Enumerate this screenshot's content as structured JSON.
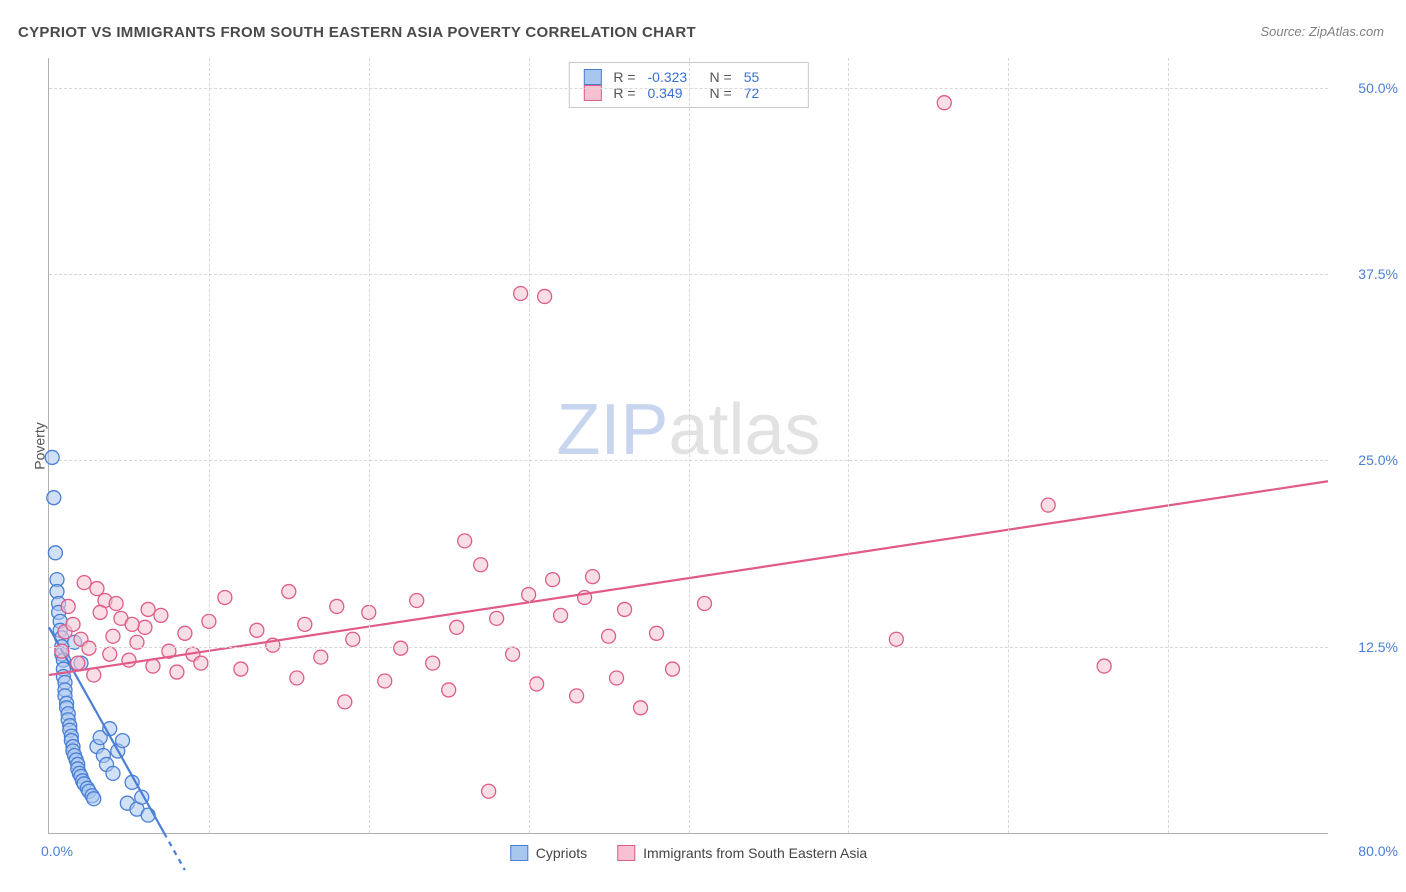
{
  "title": "CYPRIOT VS IMMIGRANTS FROM SOUTH EASTERN ASIA POVERTY CORRELATION CHART",
  "source": "Source: ZipAtlas.com",
  "ylabel": "Poverty",
  "watermark": {
    "part1": "ZIP",
    "part2": "atlas"
  },
  "chart": {
    "type": "scatter",
    "background_color": "#ffffff",
    "grid_color": "#d8d8d8",
    "axis_color": "#b0b0b0",
    "tick_color": "#4a7fd6",
    "xlim": [
      0,
      80
    ],
    "ylim": [
      0,
      52
    ],
    "x_ticks": [
      0,
      80
    ],
    "x_tick_labels": [
      "0.0%",
      "80.0%"
    ],
    "x_grid": [
      10,
      20,
      30,
      40,
      50,
      60,
      70
    ],
    "y_ticks": [
      12.5,
      25.0,
      37.5,
      50.0
    ],
    "y_tick_labels": [
      "12.5%",
      "25.0%",
      "37.5%",
      "50.0%"
    ],
    "marker_radius": 7,
    "marker_opacity": 0.55,
    "line_width": 2.2
  },
  "legend_top": {
    "r_label": "R =",
    "n_label": "N =",
    "rows": [
      {
        "r": "-0.323",
        "n": "55",
        "fill": "#a9c6ef",
        "stroke": "#4a7fd6"
      },
      {
        "r": "0.349",
        "n": "72",
        "fill": "#f6c2d2",
        "stroke": "#e05b88"
      }
    ]
  },
  "legend_bottom": {
    "items": [
      {
        "label": "Cypriots",
        "fill": "#a9c6ef",
        "stroke": "#4a7fd6"
      },
      {
        "label": "Immigrants from South Eastern Asia",
        "fill": "#f6c2d2",
        "stroke": "#e05b88"
      }
    ]
  },
  "series": [
    {
      "name": "Cypriots",
      "color_fill": "#a9c6ef",
      "color_stroke": "#4a7fd6",
      "trend": {
        "x1": 0,
        "y1": 13.8,
        "x2": 7.2,
        "y2": 0,
        "dash_extend": true
      },
      "points": [
        [
          0.2,
          25.2
        ],
        [
          0.3,
          22.5
        ],
        [
          0.4,
          18.8
        ],
        [
          0.5,
          17.0
        ],
        [
          0.5,
          16.2
        ],
        [
          0.6,
          15.4
        ],
        [
          0.6,
          14.8
        ],
        [
          0.7,
          14.2
        ],
        [
          0.7,
          13.6
        ],
        [
          0.8,
          13.1
        ],
        [
          0.8,
          12.5
        ],
        [
          0.8,
          12.0
        ],
        [
          0.9,
          11.6
        ],
        [
          0.9,
          11.0
        ],
        [
          0.9,
          10.5
        ],
        [
          1.0,
          10.1
        ],
        [
          1.0,
          9.6
        ],
        [
          1.0,
          9.2
        ],
        [
          1.1,
          8.7
        ],
        [
          1.1,
          8.4
        ],
        [
          1.2,
          8.0
        ],
        [
          1.2,
          7.6
        ],
        [
          1.3,
          7.2
        ],
        [
          1.3,
          6.9
        ],
        [
          1.4,
          6.5
        ],
        [
          1.4,
          6.2
        ],
        [
          1.5,
          5.8
        ],
        [
          1.5,
          5.5
        ],
        [
          1.6,
          5.2
        ],
        [
          1.7,
          4.9
        ],
        [
          1.8,
          4.6
        ],
        [
          1.8,
          4.3
        ],
        [
          1.9,
          4.0
        ],
        [
          2.0,
          3.8
        ],
        [
          2.1,
          3.5
        ],
        [
          2.2,
          3.3
        ],
        [
          2.4,
          3.0
        ],
        [
          2.5,
          2.8
        ],
        [
          2.7,
          2.5
        ],
        [
          2.8,
          2.3
        ],
        [
          3.0,
          5.8
        ],
        [
          3.2,
          6.4
        ],
        [
          3.4,
          5.2
        ],
        [
          3.6,
          4.6
        ],
        [
          3.8,
          7.0
        ],
        [
          4.0,
          4.0
        ],
        [
          4.3,
          5.5
        ],
        [
          4.6,
          6.2
        ],
        [
          4.9,
          2.0
        ],
        [
          5.2,
          3.4
        ],
        [
          5.5,
          1.6
        ],
        [
          5.8,
          2.4
        ],
        [
          6.2,
          1.2
        ],
        [
          1.6,
          12.8
        ],
        [
          2.0,
          11.4
        ]
      ]
    },
    {
      "name": "Immigrants from South Eastern Asia",
      "color_fill": "#f6c2d2",
      "color_stroke": "#e05b88",
      "trend": {
        "x1": 0,
        "y1": 10.6,
        "x2": 80,
        "y2": 23.6,
        "dash_extend": false
      },
      "points": [
        [
          1.0,
          13.5
        ],
        [
          1.5,
          14.0
        ],
        [
          2.0,
          13.0
        ],
        [
          2.5,
          12.4
        ],
        [
          3.0,
          16.4
        ],
        [
          3.5,
          15.6
        ],
        [
          4.0,
          13.2
        ],
        [
          4.5,
          14.4
        ],
        [
          5.0,
          11.6
        ],
        [
          5.5,
          12.8
        ],
        [
          6.0,
          13.8
        ],
        [
          6.5,
          11.2
        ],
        [
          7.0,
          14.6
        ],
        [
          7.5,
          12.2
        ],
        [
          8.0,
          10.8
        ],
        [
          8.5,
          13.4
        ],
        [
          9.0,
          12.0
        ],
        [
          9.5,
          11.4
        ],
        [
          10.0,
          14.2
        ],
        [
          11.0,
          15.8
        ],
        [
          12.0,
          11.0
        ],
        [
          13.0,
          13.6
        ],
        [
          14.0,
          12.6
        ],
        [
          15.0,
          16.2
        ],
        [
          15.5,
          10.4
        ],
        [
          16.0,
          14.0
        ],
        [
          17.0,
          11.8
        ],
        [
          18.0,
          15.2
        ],
        [
          18.5,
          8.8
        ],
        [
          19.0,
          13.0
        ],
        [
          20.0,
          14.8
        ],
        [
          21.0,
          10.2
        ],
        [
          22.0,
          12.4
        ],
        [
          23.0,
          15.6
        ],
        [
          24.0,
          11.4
        ],
        [
          25.0,
          9.6
        ],
        [
          25.5,
          13.8
        ],
        [
          26.0,
          19.6
        ],
        [
          27.0,
          18.0
        ],
        [
          27.5,
          2.8
        ],
        [
          28.0,
          14.4
        ],
        [
          29.0,
          12.0
        ],
        [
          29.5,
          36.2
        ],
        [
          30.0,
          16.0
        ],
        [
          30.5,
          10.0
        ],
        [
          31.0,
          36.0
        ],
        [
          31.5,
          17.0
        ],
        [
          32.0,
          14.6
        ],
        [
          33.0,
          9.2
        ],
        [
          33.5,
          15.8
        ],
        [
          34.0,
          17.2
        ],
        [
          35.0,
          13.2
        ],
        [
          35.5,
          10.4
        ],
        [
          36.0,
          15.0
        ],
        [
          37.0,
          8.4
        ],
        [
          38.0,
          13.4
        ],
        [
          39.0,
          11.0
        ],
        [
          41.0,
          15.4
        ],
        [
          53.0,
          13.0
        ],
        [
          56.0,
          49.0
        ],
        [
          62.5,
          22.0
        ],
        [
          66.0,
          11.2
        ],
        [
          1.2,
          15.2
        ],
        [
          2.2,
          16.8
        ],
        [
          3.2,
          14.8
        ],
        [
          4.2,
          15.4
        ],
        [
          5.2,
          14.0
        ],
        [
          6.2,
          15.0
        ],
        [
          0.8,
          12.2
        ],
        [
          1.8,
          11.4
        ],
        [
          2.8,
          10.6
        ],
        [
          3.8,
          12.0
        ]
      ]
    }
  ]
}
